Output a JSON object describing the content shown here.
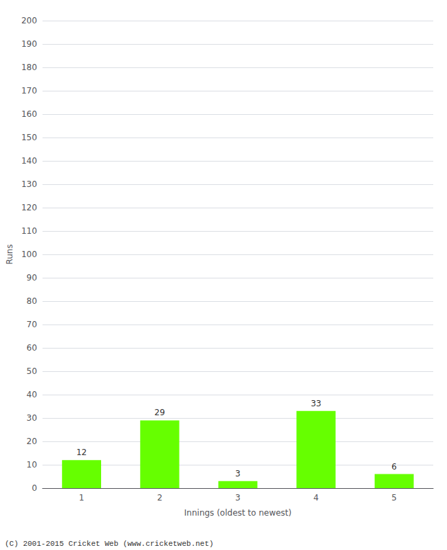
{
  "chart_data": {
    "type": "bar",
    "categories": [
      "1",
      "2",
      "3",
      "4",
      "5"
    ],
    "values": [
      12,
      29,
      3,
      33,
      6
    ],
    "color": "#66ff00",
    "xlabel": "Innings (oldest to newest)",
    "ylabel": "Runs",
    "ylim": [
      0,
      200
    ],
    "yticks": [
      0,
      10,
      20,
      30,
      40,
      50,
      60,
      70,
      80,
      90,
      100,
      110,
      120,
      130,
      140,
      150,
      160,
      170,
      180,
      190,
      200
    ],
    "grid": true,
    "data_labels": true,
    "annotations": [
      "(C) 2001-2015 Cricket Web (www.cricketweb.net)"
    ]
  }
}
